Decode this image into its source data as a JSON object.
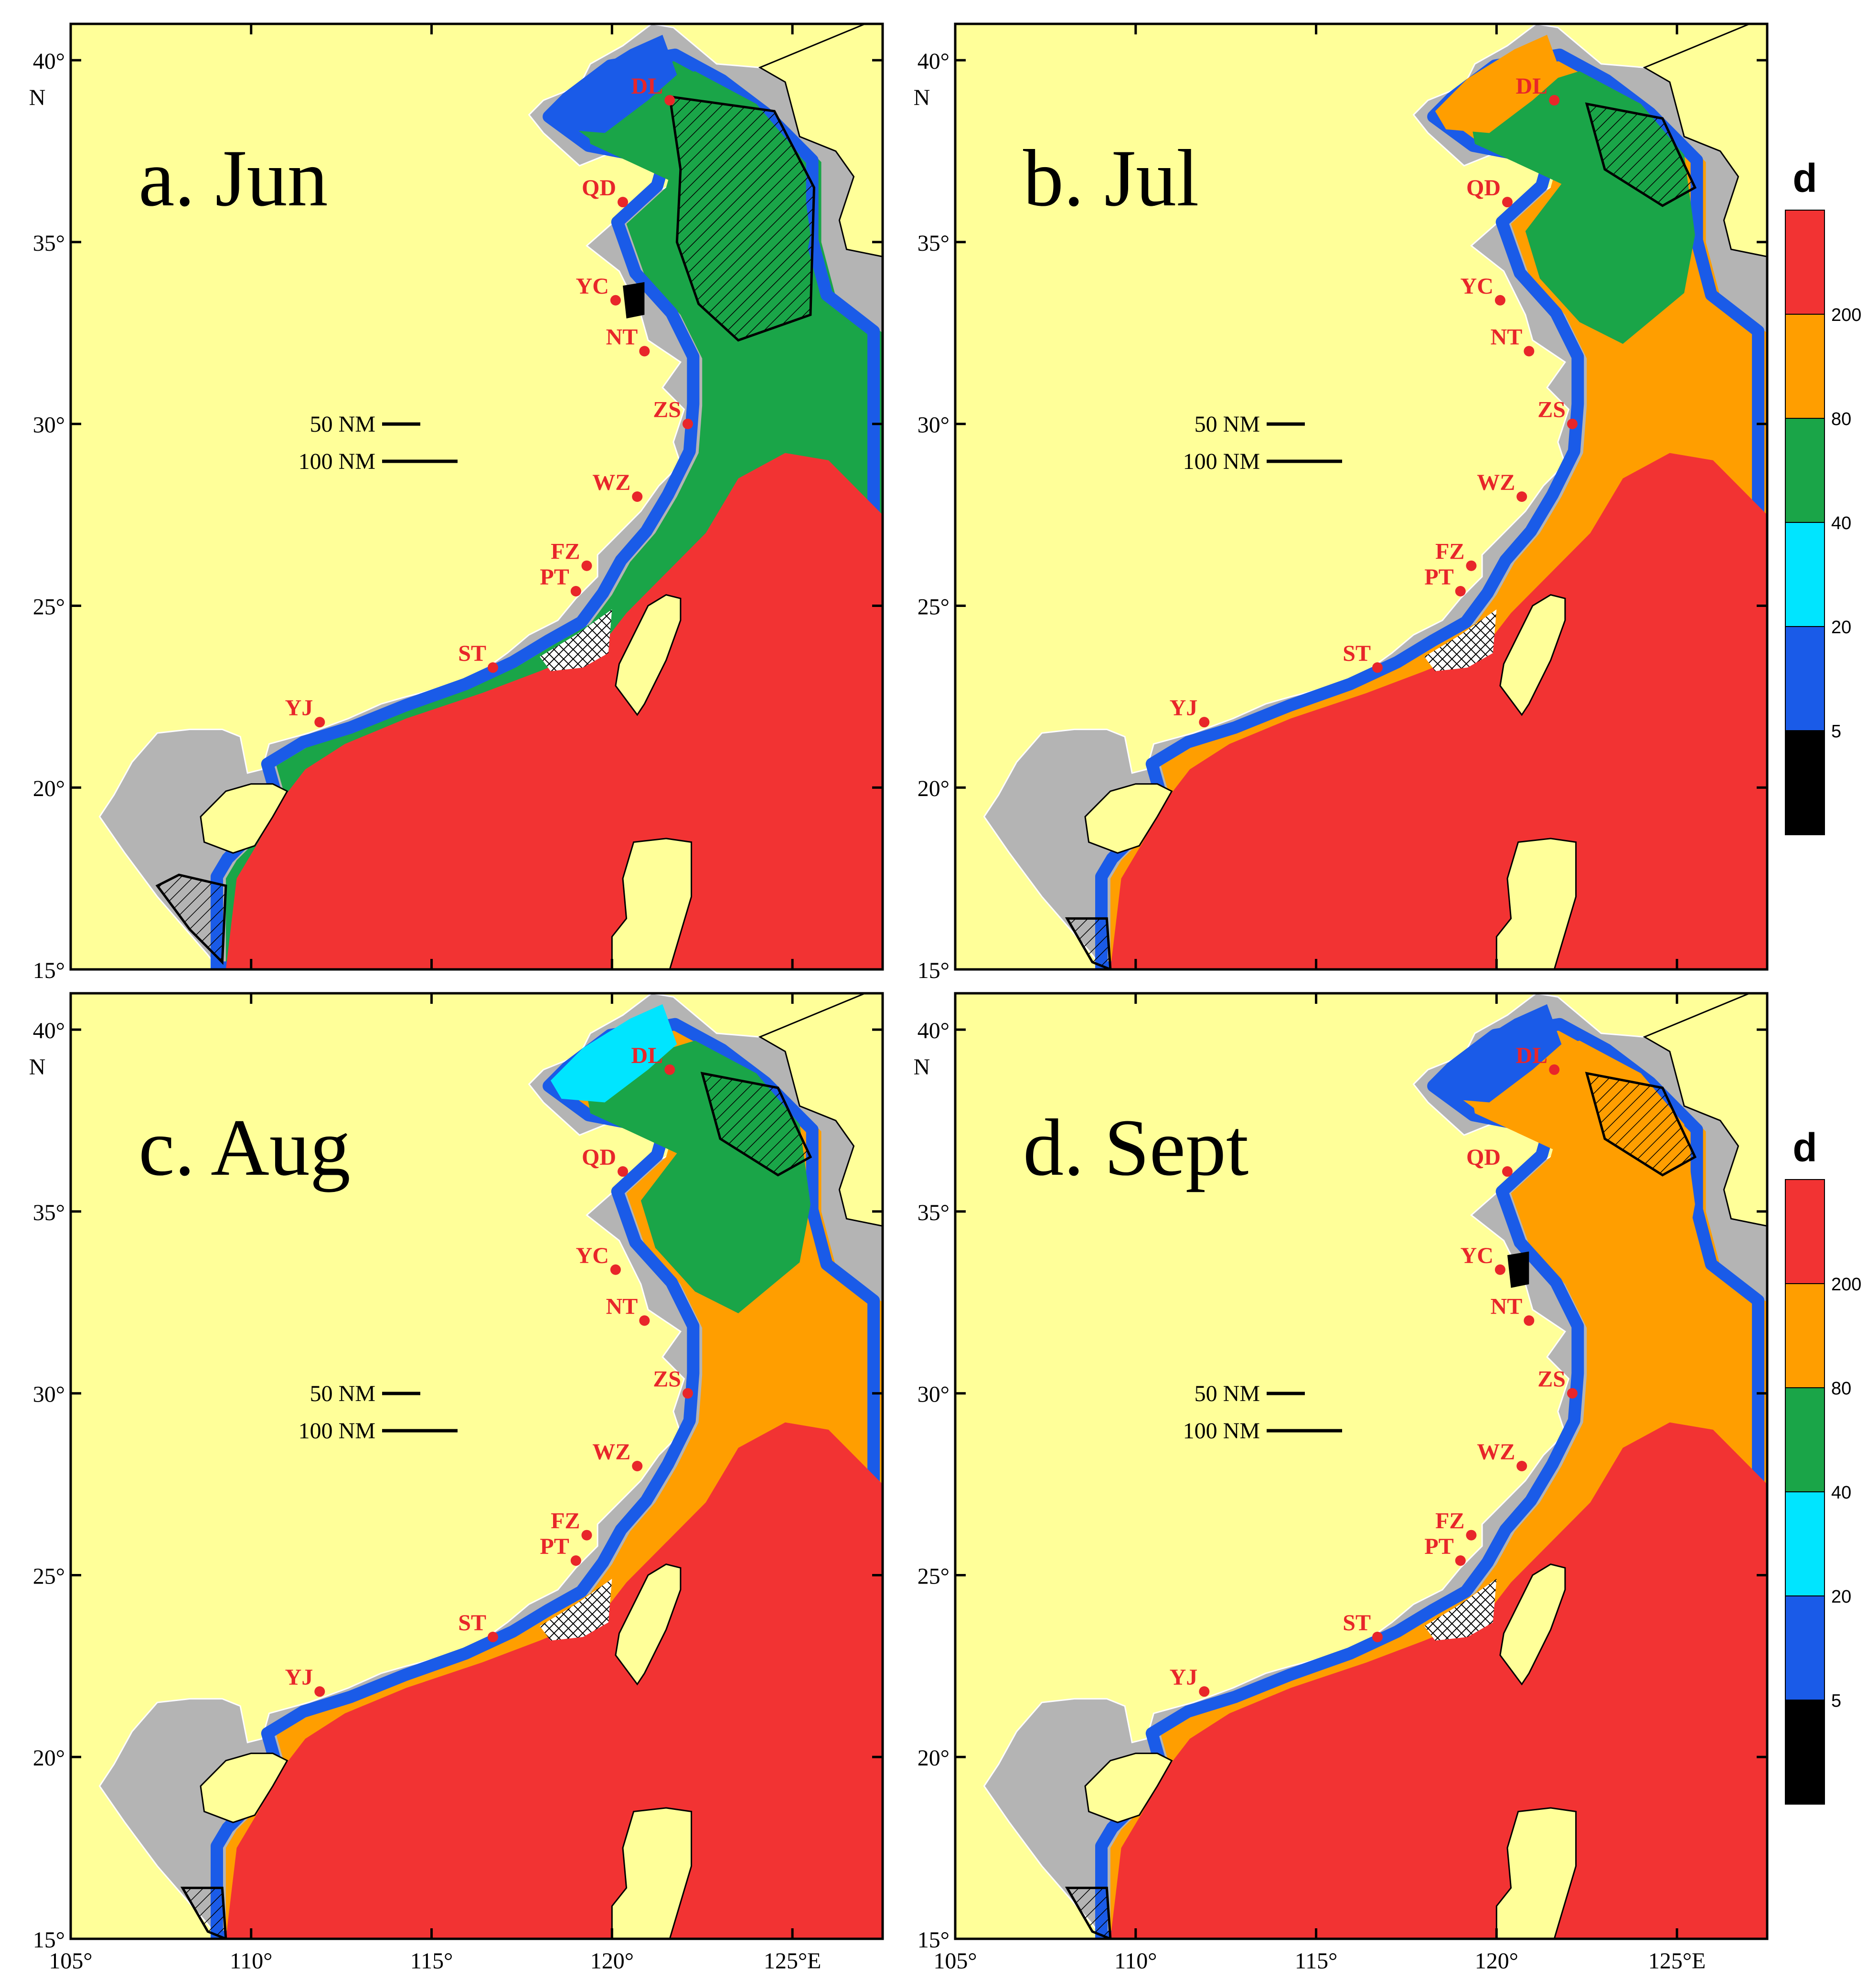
{
  "figure": {
    "panels": [
      {
        "id": "a",
        "title": "a. Jun"
      },
      {
        "id": "b",
        "title": "b. Jul"
      },
      {
        "id": "c",
        "title": "c. Aug"
      },
      {
        "id": "d",
        "title": "d. Sept"
      }
    ],
    "lat_ticks": [
      "15°",
      "20°",
      "25°",
      "30°",
      "35°",
      "40°"
    ],
    "lat_top_label": "N",
    "lon_ticks": [
      "105°",
      "110°",
      "115°",
      "120°",
      "125°E"
    ],
    "scale_bar": {
      "short_label": "50 NM",
      "long_label": "100 NM"
    },
    "cities": [
      {
        "name": "DL",
        "lon": 121.6,
        "lat": 38.9
      },
      {
        "name": "QD",
        "lon": 120.3,
        "lat": 36.1
      },
      {
        "name": "YC",
        "lon": 120.1,
        "lat": 33.4
      },
      {
        "name": "NT",
        "lon": 120.9,
        "lat": 32.0
      },
      {
        "name": "ZS",
        "lon": 122.1,
        "lat": 30.0
      },
      {
        "name": "WZ",
        "lon": 120.7,
        "lat": 28.0
      },
      {
        "name": "FZ",
        "lon": 119.3,
        "lat": 26.1
      },
      {
        "name": "PT",
        "lon": 119.0,
        "lat": 25.4
      },
      {
        "name": "ST",
        "lon": 116.7,
        "lat": 23.3
      },
      {
        "name": "YJ",
        "lon": 111.9,
        "lat": 21.8
      }
    ],
    "colorbar": {
      "title": "d",
      "labels": [
        "5",
        "20",
        "40",
        "80",
        "200"
      ],
      "colors": [
        "#000000",
        "#1a5be8",
        "#00e5ff",
        "#1aa548",
        "#ff9e00",
        "#f23333"
      ]
    },
    "colors": {
      "land": "#ffff99",
      "sea": "#b4b4b4",
      "city": "#e8262a"
    }
  }
}
